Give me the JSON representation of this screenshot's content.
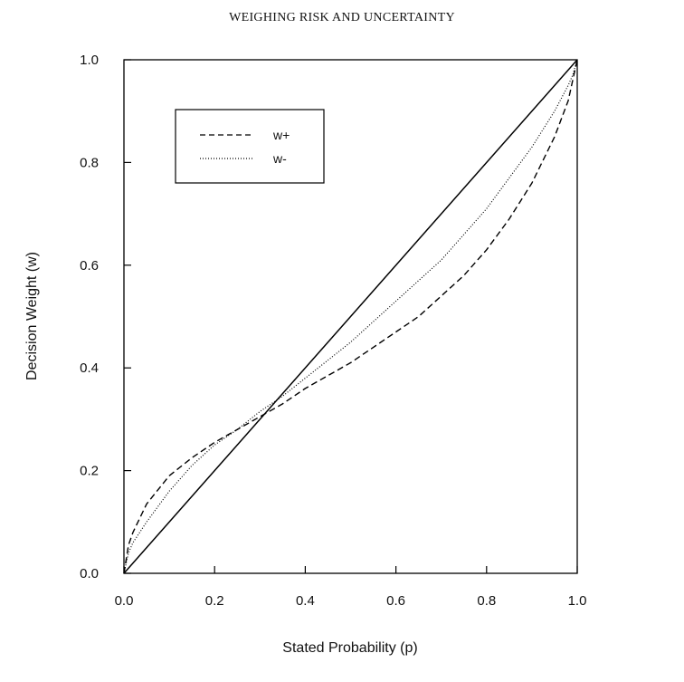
{
  "page": {
    "header": "WEIGHING RISK AND UNCERTAINTY"
  },
  "chart_data": {
    "type": "line",
    "title": "",
    "xlabel": "Stated Probability (p)",
    "ylabel": "Decision Weight (w)",
    "xlim": [
      0,
      1
    ],
    "ylim": [
      0,
      1
    ],
    "xticks": [
      "0.0",
      "0.2",
      "0.4",
      "0.6",
      "0.8",
      "1.0"
    ],
    "yticks": [
      "0.0",
      "0.2",
      "0.4",
      "0.6",
      "0.8",
      "1.0"
    ],
    "grid": false,
    "legend_position": "upper-left",
    "series": [
      {
        "name": "",
        "style": "solid",
        "x": [
          0,
          1
        ],
        "y": [
          0,
          1
        ]
      },
      {
        "name": "w+",
        "style": "dashed",
        "x": [
          0,
          0.01,
          0.02,
          0.05,
          0.1,
          0.15,
          0.2,
          0.25,
          0.3,
          0.35,
          0.4,
          0.45,
          0.5,
          0.55,
          0.6,
          0.65,
          0.7,
          0.75,
          0.8,
          0.85,
          0.9,
          0.95,
          0.98,
          0.99,
          1
        ],
        "y": [
          0,
          0.055,
          0.08,
          0.135,
          0.19,
          0.225,
          0.255,
          0.28,
          0.305,
          0.33,
          0.36,
          0.385,
          0.41,
          0.44,
          0.47,
          0.5,
          0.54,
          0.58,
          0.63,
          0.69,
          0.76,
          0.85,
          0.92,
          0.96,
          1
        ]
      },
      {
        "name": "w-",
        "style": "dotted",
        "x": [
          0,
          0.01,
          0.02,
          0.05,
          0.1,
          0.15,
          0.2,
          0.25,
          0.3,
          0.35,
          0.4,
          0.45,
          0.5,
          0.55,
          0.6,
          0.65,
          0.7,
          0.75,
          0.8,
          0.85,
          0.9,
          0.95,
          0.98,
          0.99,
          1
        ],
        "y": [
          0,
          0.04,
          0.06,
          0.1,
          0.16,
          0.21,
          0.25,
          0.28,
          0.315,
          0.345,
          0.38,
          0.415,
          0.45,
          0.49,
          0.53,
          0.57,
          0.61,
          0.66,
          0.71,
          0.77,
          0.83,
          0.9,
          0.95,
          0.97,
          1
        ]
      }
    ]
  }
}
